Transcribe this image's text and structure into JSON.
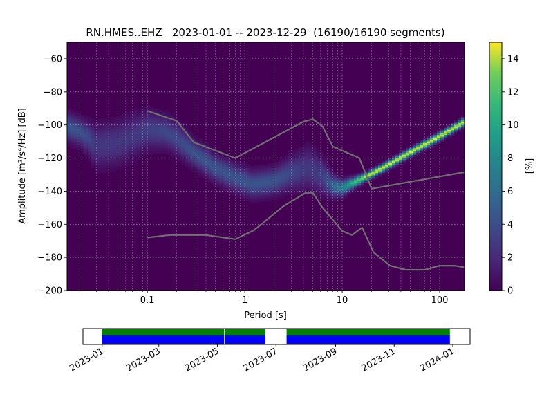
{
  "chart_data": [
    {
      "type": "heatmap",
      "title": "RN.HMES..EHZ   2023-01-01 -- 2023-12-29  (16190/16190 segments)",
      "xlabel": "Period [s]",
      "ylabel": "Amplitude [m²/s⁴/Hz] [dB]",
      "x_scale": "log",
      "xlim": [
        0.015,
        180
      ],
      "ylim": [
        -200,
        -50
      ],
      "x_ticks": [
        0.1,
        1,
        10,
        100
      ],
      "x_tick_labels": [
        "0.1",
        "1",
        "10",
        "100"
      ],
      "y_ticks": [
        -200,
        -180,
        -160,
        -140,
        -120,
        -100,
        -80,
        -60
      ],
      "y_tick_labels": [
        "−200",
        "−180",
        "−160",
        "−140",
        "−120",
        "−100",
        "−80",
        "−60"
      ],
      "grid": true,
      "colormap": "viridis",
      "colorbar": {
        "label": "[%]",
        "range": [
          0,
          15
        ],
        "ticks": [
          0,
          2,
          4,
          6,
          8,
          10,
          12,
          14
        ],
        "tick_labels": [
          "0",
          "2",
          "4",
          "6",
          "8",
          "10",
          "12",
          "14"
        ]
      },
      "mode_curve": {
        "x": [
          0.015,
          0.02,
          0.025,
          0.03,
          0.05,
          0.07,
          0.1,
          0.15,
          0.2,
          0.3,
          0.5,
          0.8,
          1.2,
          2,
          3,
          4.5,
          6,
          8,
          10,
          13,
          18,
          30,
          60,
          100,
          180
        ],
        "y": [
          -101,
          -104,
          -108,
          -113,
          -111,
          -107,
          -103,
          -104,
          -108,
          -117,
          -126,
          -132,
          -136,
          -134,
          -129,
          -126,
          -130,
          -137,
          -138,
          -135,
          -131,
          -124,
          -114,
          -107,
          -98
        ],
        "spread_db": [
          5,
          5,
          6,
          8,
          8,
          8,
          7,
          6,
          6,
          5,
          5,
          5,
          5,
          5,
          6,
          8,
          7,
          4,
          3,
          2,
          1.5,
          1.5,
          1.5,
          1.5,
          1.5
        ]
      },
      "series": [
        {
          "name": "",
          "x": [
            0.1,
            0.2,
            0.3,
            0.8,
            4,
            5,
            6.3,
            8,
            15,
            20,
            180
          ],
          "y": [
            -91.5,
            -97.5,
            -110.5,
            -120,
            -98,
            -96.5,
            -101,
            -113,
            -120,
            -138.5,
            -128.5
          ]
        },
        {
          "name": "",
          "x": [
            0.1,
            0.17,
            0.4,
            0.8,
            1.25,
            2.5,
            4.2,
            5,
            6.3,
            10,
            12.6,
            16,
            21,
            31,
            45,
            70,
            100,
            141,
            180
          ],
          "y": [
            -168,
            -166.5,
            -166.5,
            -169,
            -163.5,
            -149,
            -141,
            -141,
            -150,
            -164,
            -166.5,
            -162,
            -177,
            -185,
            -187.5,
            -187.5,
            -185,
            -185,
            -186
          ]
        }
      ]
    },
    {
      "type": "timeline",
      "xlim": [
        "2022-12-12",
        "2024-01-19"
      ],
      "x_ticks": [
        "2023-01",
        "2023-03",
        "2023-05",
        "2023-07",
        "2023-09",
        "2023-11",
        "2024-01"
      ],
      "x_tick_labels": [
        "2023-01",
        "2023-03",
        "2023-05",
        "2023-07",
        "2023-09",
        "2023-11",
        "2024-01"
      ],
      "data_available": [
        [
          "2023-01-01",
          "2023-05-08"
        ],
        [
          "2023-05-09",
          "2023-06-20"
        ],
        [
          "2023-07-12",
          "2023-12-29"
        ]
      ],
      "psd_used": [
        [
          "2023-01-01",
          "2023-05-08"
        ],
        [
          "2023-05-09",
          "2023-06-20"
        ],
        [
          "2023-07-12",
          "2023-12-29"
        ]
      ],
      "colors": {
        "data_available": "#0000ff",
        "psd_used": "#008000"
      }
    }
  ]
}
